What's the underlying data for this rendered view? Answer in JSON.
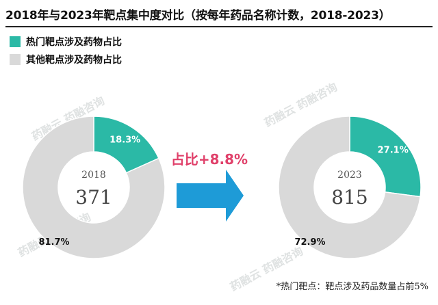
{
  "title": "2018年与2023年靶点集中度对比（按每年药品名称计数，2018-2023）",
  "legend": [
    {
      "label": "热门靶点涉及药物占比",
      "color": "#2bb9a6"
    },
    {
      "label": "其他靶点涉及药物占比",
      "color": "#d9d9d9"
    }
  ],
  "arrow_label": "占比+8.8%",
  "footnote": "*热门靶点：靶点涉及药品数量占前5%",
  "watermark": "药融云 药融咨询",
  "colors": {
    "hot": "#2bb9a6",
    "other": "#d9d9d9",
    "arrow": "#1e9bd7",
    "arrow_text": "#e0406a"
  },
  "chart_data": [
    {
      "type": "pie",
      "year": "2018",
      "total": "371",
      "slices": [
        {
          "name": "热门靶点涉及药物占比",
          "value": 18.3,
          "label": "18.3%"
        },
        {
          "name": "其他靶点涉及药物占比",
          "value": 81.7,
          "label": "81.7%"
        }
      ]
    },
    {
      "type": "pie",
      "year": "2023",
      "total": "815",
      "slices": [
        {
          "name": "热门靶点涉及药物占比",
          "value": 27.1,
          "label": "27.1%"
        },
        {
          "name": "其他靶点涉及药物占比",
          "value": 72.9,
          "label": "72.9%"
        }
      ]
    }
  ]
}
